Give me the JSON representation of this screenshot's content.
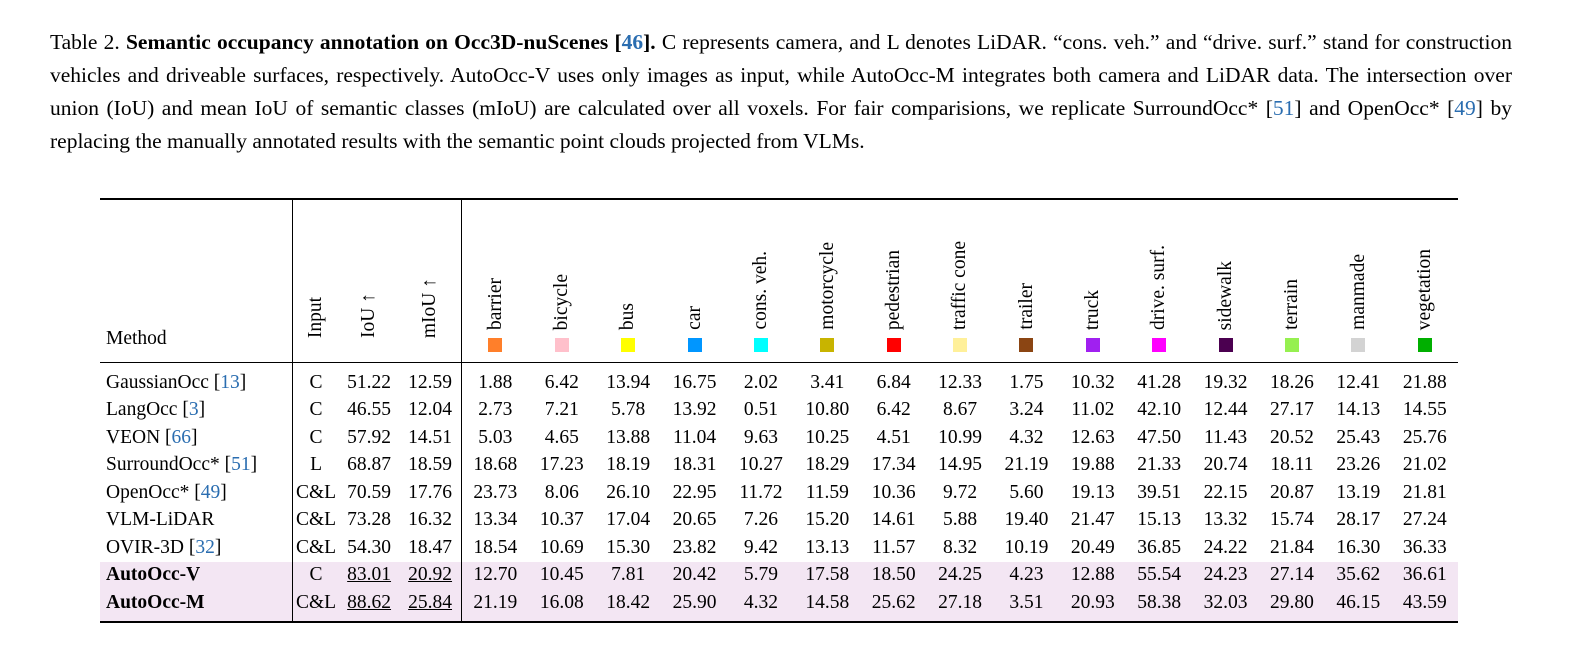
{
  "caption": {
    "label": "Table 2.",
    "title_before_cite": "Semantic occupancy annotation on Occ3D-nuScenes [",
    "title_cite": "46",
    "title_after_cite": "].",
    "body_1": " C represents camera, and L denotes LiDAR. “cons. veh.” and “drive. surf.” stand for construction vehicles and driveable surfaces, respectively. AutoOcc-V uses only images as input, while AutoOcc-M integrates both camera and LiDAR data. The intersection over union (IoU) and mean IoU of semantic classes (mIoU) are calculated over all voxels. For fair comparisions, we replicate SurroundOcc* [",
    "cite_1": "51",
    "body_2": "] and OpenOcc* [",
    "cite_2": "49",
    "body_3": "] by replacing the manually annotated results with the semantic point clouds projected from VLMs."
  },
  "headers": {
    "method": "Method",
    "input": "Input",
    "iou": "IoU ↑",
    "miou": "mIoU ↑"
  },
  "classes": [
    {
      "name": "barrier",
      "color": "#ff7f2a"
    },
    {
      "name": "bicycle",
      "color": "#ffc0cb"
    },
    {
      "name": "bus",
      "color": "#ffff00"
    },
    {
      "name": "car",
      "color": "#0096ff"
    },
    {
      "name": "cons. veh.",
      "color": "#00ffff"
    },
    {
      "name": "motorcycle",
      "color": "#c8b400"
    },
    {
      "name": "pedestrian",
      "color": "#ff0000"
    },
    {
      "name": "traffic cone",
      "color": "#fff09a"
    },
    {
      "name": "trailer",
      "color": "#8b4513"
    },
    {
      "name": "truck",
      "color": "#a020f0"
    },
    {
      "name": "drive. surf.",
      "color": "#ff00ff"
    },
    {
      "name": "sidewalk",
      "color": "#4b0050"
    },
    {
      "name": "terrain",
      "color": "#96f050"
    },
    {
      "name": "manmade",
      "color": "#d3d3d3"
    },
    {
      "name": "vegetation",
      "color": "#00af00"
    }
  ],
  "rows": [
    {
      "method": "GaussianOcc [",
      "cite": "13",
      "close": "]",
      "input": "C",
      "iou": "51.22",
      "miou": "12.59",
      "values": [
        "1.88",
        "6.42",
        "13.94",
        "16.75",
        "2.02",
        "3.41",
        "6.84",
        "12.33",
        "1.75",
        "10.32",
        "41.28",
        "19.32",
        "18.26",
        "12.41",
        "21.88"
      ]
    },
    {
      "method": "LangOcc [",
      "cite": "3",
      "close": "]",
      "input": "C",
      "iou": "46.55",
      "miou": "12.04",
      "values": [
        "2.73",
        "7.21",
        "5.78",
        "13.92",
        "0.51",
        "10.80",
        "6.42",
        "8.67",
        "3.24",
        "11.02",
        "42.10",
        "12.44",
        "27.17",
        "14.13",
        "14.55"
      ]
    },
    {
      "method": "VEON [",
      "cite": "66",
      "close": "]",
      "input": "C",
      "iou": "57.92",
      "miou": "14.51",
      "values": [
        "5.03",
        "4.65",
        "13.88",
        "11.04",
        "9.63",
        "10.25",
        "4.51",
        "10.99",
        "4.32",
        "12.63",
        "47.50",
        "11.43",
        "20.52",
        "25.43",
        "25.76"
      ]
    },
    {
      "method": "SurroundOcc* [",
      "cite": "51",
      "close": "]",
      "input": "L",
      "iou": "68.87",
      "miou": "18.59",
      "values": [
        "18.68",
        "17.23",
        "18.19",
        "18.31",
        "10.27",
        "18.29",
        "17.34",
        "14.95",
        "21.19",
        "19.88",
        "21.33",
        "20.74",
        "18.11",
        "23.26",
        "21.02"
      ]
    },
    {
      "method": "OpenOcc* [",
      "cite": "49",
      "close": "]",
      "input": "C&L",
      "iou": "70.59",
      "miou": "17.76",
      "values": [
        "23.73",
        "8.06",
        "26.10",
        "22.95",
        "11.72",
        "11.59",
        "10.36",
        "9.72",
        "5.60",
        "19.13",
        "39.51",
        "22.15",
        "20.87",
        "13.19",
        "21.81"
      ]
    },
    {
      "method": "VLM-LiDAR",
      "cite": "",
      "close": "",
      "input": "C&L",
      "iou": "73.28",
      "miou": "16.32",
      "values": [
        "13.34",
        "10.37",
        "17.04",
        "20.65",
        "7.26",
        "15.20",
        "14.61",
        "5.88",
        "19.40",
        "21.47",
        "15.13",
        "13.32",
        "15.74",
        "28.17",
        "27.24"
      ]
    },
    {
      "method": "OVIR-3D [",
      "cite": "32",
      "close": "]",
      "input": "C&L",
      "iou": "54.30",
      "miou": "18.47",
      "values": [
        "18.54",
        "10.69",
        "15.30",
        "23.82",
        "9.42",
        "13.13",
        "11.57",
        "8.32",
        "10.19",
        "20.49",
        "36.85",
        "24.22",
        "21.84",
        "16.30",
        "36.33"
      ]
    },
    {
      "method": "AutoOcc-V",
      "cite": "",
      "close": "",
      "input": "C",
      "iou": "83.01",
      "miou": "20.92",
      "values": [
        "12.70",
        "10.45",
        "7.81",
        "20.42",
        "5.79",
        "17.58",
        "18.50",
        "24.25",
        "4.23",
        "12.88",
        "55.54",
        "24.23",
        "27.14",
        "35.62",
        "36.61"
      ],
      "highlight": true
    },
    {
      "method": "AutoOcc-M",
      "cite": "",
      "close": "",
      "input": "C&L",
      "iou": "88.62",
      "miou": "25.84",
      "values": [
        "21.19",
        "16.08",
        "18.42",
        "25.90",
        "4.32",
        "14.58",
        "25.62",
        "27.18",
        "3.51",
        "20.93",
        "58.38",
        "32.03",
        "29.80",
        "46.15",
        "43.59"
      ],
      "highlight": true
    }
  ]
}
